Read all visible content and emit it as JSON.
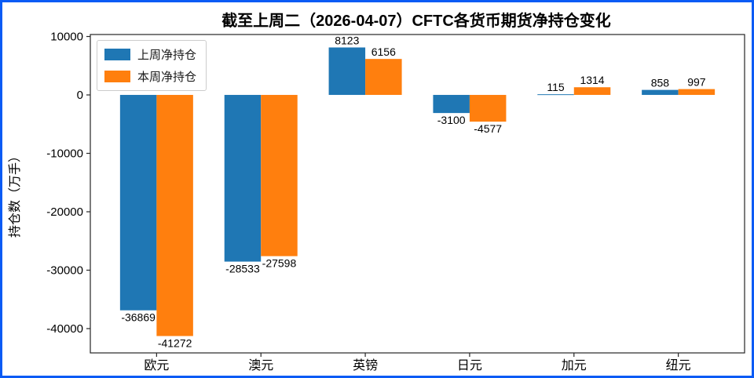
{
  "page": {
    "border_color": "#0a5bf5",
    "background": "#ffffff"
  },
  "chart_data": {
    "type": "bar",
    "title": "截至上周二（2026-04-07）CFTC各货币期货净持仓变化",
    "xlabel": "",
    "ylabel": "持仓数（万手）",
    "categories": [
      "欧元",
      "澳元",
      "英镑",
      "日元",
      "加元",
      "纽元"
    ],
    "series": [
      {
        "name": "上周净持仓",
        "color": "#1f77b4",
        "values": [
          -36869,
          -28533,
          8123,
          -3100,
          115,
          858
        ]
      },
      {
        "name": "本周净持仓",
        "color": "#ff7f0e",
        "values": [
          -41272,
          -27598,
          6156,
          -4577,
          1314,
          997
        ]
      }
    ],
    "yticks": [
      10000,
      0,
      -10000,
      -20000,
      -30000,
      -40000
    ],
    "ylim": [
      -44160,
      10340
    ],
    "legend_position": "upper-left",
    "grid": false,
    "frame_color": "#262626",
    "text_color": "#000000"
  }
}
